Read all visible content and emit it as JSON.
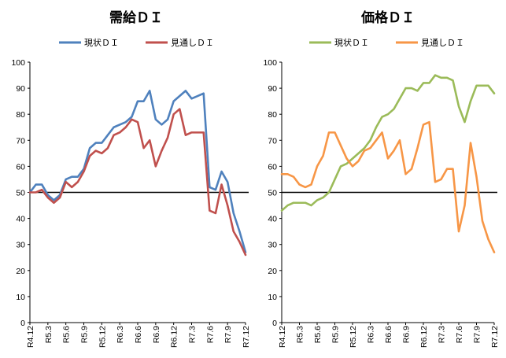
{
  "chart_data": [
    {
      "type": "line",
      "title": "需給ＤＩ",
      "xlabel": "",
      "ylabel": "",
      "ylim": [
        0,
        100
      ],
      "yticks": [
        "0",
        "10",
        "20",
        "30",
        "40",
        "50",
        "60",
        "70",
        "80",
        "90",
        "100"
      ],
      "reference_line": 50,
      "x_tick_labels": [
        "R4.12",
        "R5.3",
        "R5.6",
        "R5.9",
        "R5.12",
        "R6.3",
        "R6.6",
        "R6.9",
        "R6.12",
        "R7.3",
        "R7.6",
        "R7.9",
        "R7.12"
      ],
      "x_periods": [
        "R4.12",
        "R5.1",
        "R5.2",
        "R5.3",
        "R5.4",
        "R5.5",
        "R5.6",
        "R5.7",
        "R5.8",
        "R5.9",
        "R5.10",
        "R5.11",
        "R5.12",
        "R6.1",
        "R6.2",
        "R6.3",
        "R6.4",
        "R6.5",
        "R6.6",
        "R6.7",
        "R6.8",
        "R6.9",
        "R6.10",
        "R6.11",
        "R6.12",
        "R7.1",
        "R7.2",
        "R7.3",
        "R7.4",
        "R7.5",
        "R7.6",
        "R7.7",
        "R7.8",
        "R7.9",
        "R7.10",
        "R7.11",
        "R7.12"
      ],
      "series": [
        {
          "name": "現状ＤＩ",
          "color": "#4f81bd",
          "values": [
            50,
            53,
            53,
            49,
            47,
            49,
            55,
            56,
            56,
            59,
            67,
            69,
            69,
            72,
            75,
            76,
            77,
            79,
            85,
            85,
            89,
            78,
            76,
            78,
            85,
            87,
            89,
            86,
            87,
            88,
            52,
            51,
            58,
            54,
            42,
            35,
            27
          ]
        },
        {
          "name": "見通しＤＩ",
          "color": "#c0504d",
          "values": [
            50,
            50,
            51,
            48,
            46,
            48,
            54,
            52,
            54,
            58,
            64,
            66,
            65,
            67,
            72,
            73,
            75,
            78,
            77,
            67,
            70,
            60,
            66,
            71,
            80,
            82,
            72,
            73,
            73,
            73,
            43,
            42,
            53,
            45,
            35,
            31,
            26
          ]
        }
      ]
    },
    {
      "type": "line",
      "title": "価格ＤＩ",
      "xlabel": "",
      "ylabel": "",
      "ylim": [
        0,
        100
      ],
      "yticks": [
        "0",
        "10",
        "20",
        "30",
        "40",
        "50",
        "60",
        "70",
        "80",
        "90",
        "100"
      ],
      "reference_line": 50,
      "x_tick_labels": [
        "R4.12",
        "R5.3",
        "R5.6",
        "R5.9",
        "R5.12",
        "R6.3",
        "R6.6",
        "R6.9",
        "R6.12",
        "R7.3",
        "R7.6",
        "R7.9",
        "R7.12"
      ],
      "x_periods": [
        "R4.12",
        "R5.1",
        "R5.2",
        "R5.3",
        "R5.4",
        "R5.5",
        "R5.6",
        "R5.7",
        "R5.8",
        "R5.9",
        "R5.10",
        "R5.11",
        "R5.12",
        "R6.1",
        "R6.2",
        "R6.3",
        "R6.4",
        "R6.5",
        "R6.6",
        "R6.7",
        "R6.8",
        "R6.9",
        "R6.10",
        "R6.11",
        "R6.12",
        "R7.1",
        "R7.2",
        "R7.3",
        "R7.4",
        "R7.5",
        "R7.6",
        "R7.7",
        "R7.8",
        "R7.9",
        "R7.10",
        "R7.11",
        "R7.12"
      ],
      "series": [
        {
          "name": "現状ＤＩ",
          "color": "#9bbb59",
          "values": [
            43,
            45,
            46,
            46,
            46,
            45,
            47,
            48,
            50,
            55,
            60,
            61,
            63,
            65,
            67,
            70,
            75,
            79,
            80,
            82,
            86,
            90,
            90,
            89,
            92,
            92,
            95,
            94,
            94,
            93,
            83,
            77,
            85,
            91,
            91,
            91,
            88
          ]
        },
        {
          "name": "見通しＤＩ",
          "color": "#f79646",
          "values": [
            57,
            57,
            56,
            53,
            52,
            53,
            60,
            64,
            73,
            73,
            68,
            63,
            60,
            62,
            66,
            67,
            70,
            73,
            63,
            66,
            70,
            57,
            59,
            67,
            76,
            77,
            54,
            55,
            59,
            59,
            35,
            45,
            69,
            56,
            39,
            32,
            27
          ]
        }
      ]
    }
  ]
}
